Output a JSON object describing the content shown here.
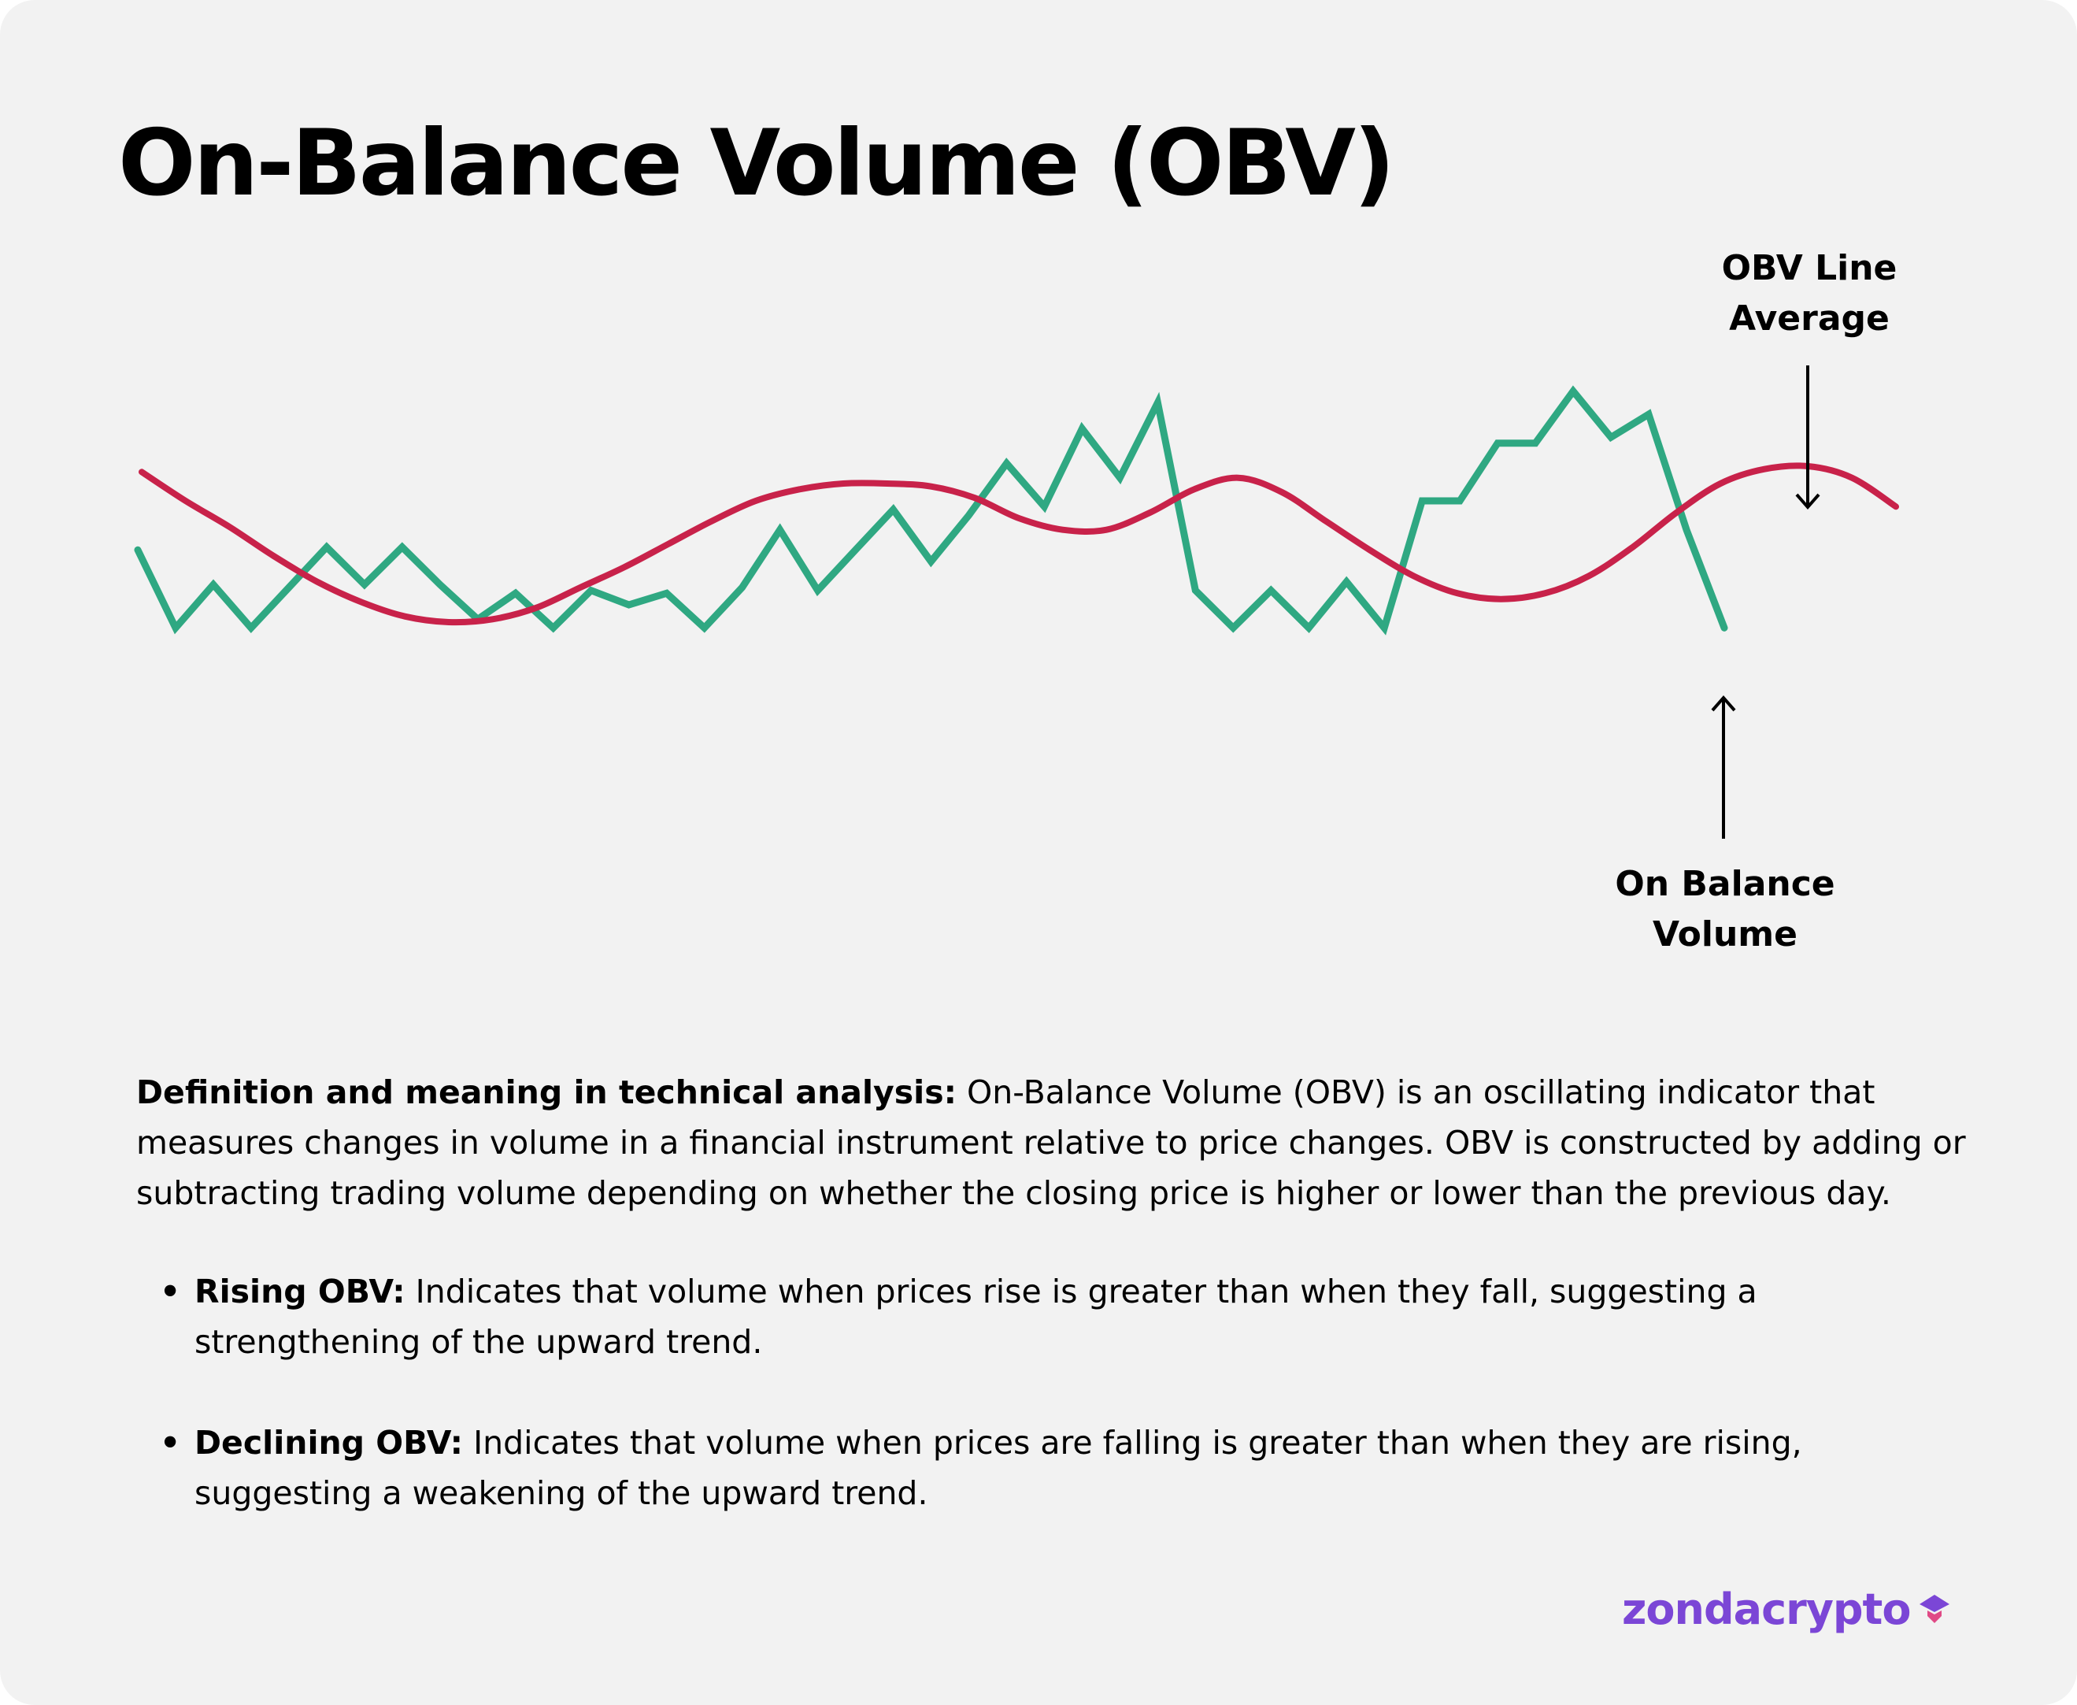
{
  "title": "On-Balance Volume (OBV)",
  "chart_data": {
    "type": "line",
    "title": "On-Balance Volume (OBV)",
    "xlabel": "",
    "ylabel": "",
    "grid": false,
    "legend": "none",
    "series": [
      {
        "color": "#2fa882",
        "values": [
          5.5,
          2.8,
          4.3,
          2.8,
          4.2,
          5.6,
          4.3,
          5.6,
          4.3,
          3.1,
          4.0,
          2.8,
          4.1,
          3.6,
          4.0,
          2.8,
          4.2,
          6.2,
          4.1,
          5.5,
          6.9,
          5.1,
          6.7,
          8.5,
          7.0,
          9.7,
          8.0,
          10.6,
          4.1,
          2.8,
          4.1,
          2.8,
          4.4,
          2.8,
          7.2,
          7.2,
          9.2,
          9.2,
          11.0,
          9.4,
          10.2,
          6.2,
          2.8
        ]
      },
      {
        "color": "#c8224a",
        "values": [
          8.2,
          7.2,
          6.3,
          5.3,
          4.4,
          3.7,
          3.2,
          3.0,
          3.1,
          3.5,
          4.2,
          4.9,
          5.7,
          6.5,
          7.2,
          7.6,
          7.8,
          7.8,
          7.7,
          7.3,
          6.6,
          6.2,
          6.2,
          6.8,
          7.6,
          8.0,
          7.5,
          6.5,
          5.5,
          4.6,
          4.0,
          3.8,
          4.0,
          4.6,
          5.6,
          6.8,
          7.8,
          8.3,
          8.4,
          8.0,
          7.0
        ]
      }
    ],
    "annotations": [
      {
        "text": [
          "OBV Line",
          "Average"
        ],
        "target": "average"
      },
      {
        "text": [
          "On Balance",
          "Volume"
        ],
        "target": "obv"
      }
    ]
  },
  "definition": {
    "label": "Definition and meaning in technical analysis:",
    "text": " On-Balance Volume (OBV) is an oscillating indicator that measures changes in volume in a financial instrument relative to price changes. OBV is constructed by adding or subtracting trading volume depending on whether the closing price is higher or lower than the previous day."
  },
  "bullets": [
    {
      "label": "Rising OBV:",
      "text": " Indicates that volume when prices rise is greater than when they fall, suggesting a strengthening of the upward trend."
    },
    {
      "label": "Declining OBV:",
      "text": " Indicates that volume when prices are falling is greater than when they are rising, suggesting a weakening of the upward trend."
    }
  ],
  "logo": {
    "text": "zondacrypto",
    "icon": "logo-mark-icon",
    "color": "#7b46d6"
  },
  "colors": {
    "background": "#f2f2f2",
    "obv": "#2fa882",
    "average": "#c8224a",
    "text": "#000000"
  }
}
